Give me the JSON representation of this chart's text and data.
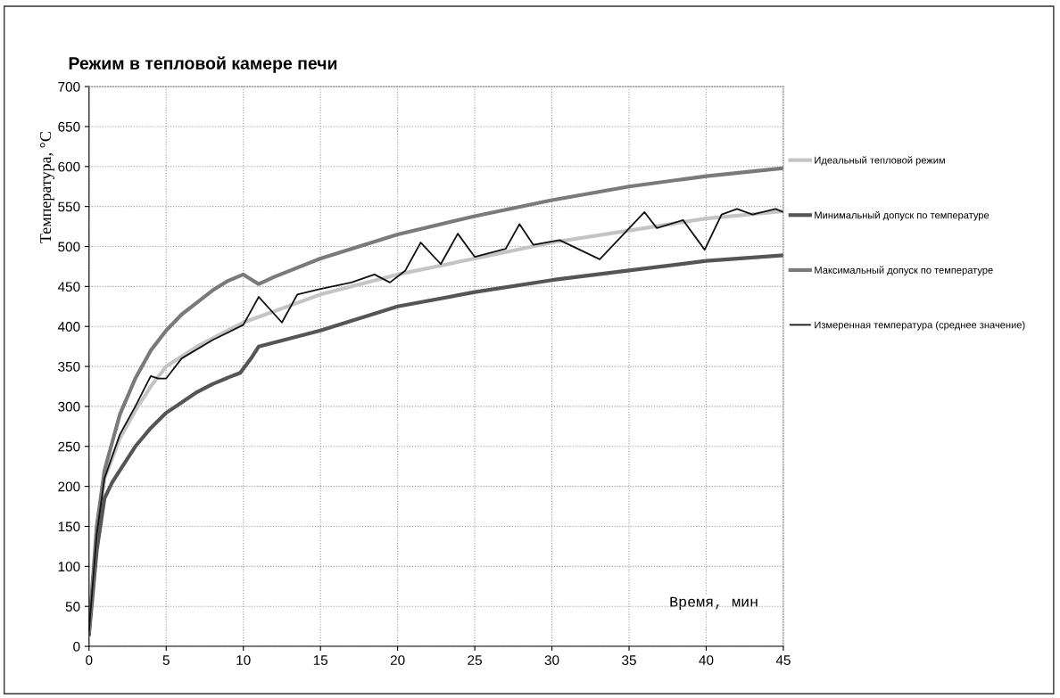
{
  "chart_data": {
    "type": "line",
    "title": "Режим в тепловой камере печи",
    "xlabel": "Время, мин",
    "ylabel": "Температура, °С",
    "xlim": [
      0,
      45
    ],
    "xticks": [
      0,
      5,
      10,
      15,
      20,
      25,
      30,
      35,
      40,
      45
    ],
    "ylim": [
      0,
      700
    ],
    "yticks": [
      0,
      50,
      100,
      150,
      200,
      250,
      300,
      350,
      400,
      450,
      500,
      550,
      600,
      650,
      700
    ],
    "grid": true,
    "legend": "right",
    "marker": "none",
    "line_style": "solid",
    "series": [
      {
        "name": "Идеальный тепловой режим",
        "color": "#c4c4c4",
        "x": [
          0,
          0.5,
          1,
          2,
          3,
          4,
          5,
          7,
          10,
          15,
          20,
          25,
          30,
          35,
          40,
          45
        ],
        "values": [
          18,
          140,
          210,
          260,
          295,
          325,
          350,
          375,
          405,
          440,
          465,
          485,
          505,
          520,
          535,
          544
        ]
      },
      {
        "name": "Минимальный допуск по температуре",
        "color": "#555555",
        "x": [
          0,
          0.5,
          1,
          1.5,
          2,
          3,
          4,
          5,
          6,
          7,
          8,
          9,
          9.8,
          10.5,
          11,
          12,
          13,
          15,
          20,
          25,
          30,
          35,
          40,
          45
        ],
        "values": [
          15,
          120,
          185,
          205,
          220,
          250,
          273,
          292,
          305,
          318,
          328,
          336,
          342,
          360,
          375,
          380,
          385,
          395,
          425,
          443,
          458,
          470,
          482,
          489
        ]
      },
      {
        "name": "Максимальный допуск по температуре",
        "color": "#7a7a7a",
        "x": [
          0,
          0.5,
          1,
          1.5,
          2,
          3,
          4,
          5,
          6,
          7,
          8,
          9,
          10,
          11,
          12,
          15,
          20,
          25,
          30,
          35,
          40,
          45
        ],
        "values": [
          20,
          150,
          220,
          255,
          290,
          335,
          370,
          395,
          415,
          430,
          445,
          457,
          465,
          453,
          462,
          485,
          515,
          538,
          558,
          575,
          588,
          598
        ]
      },
      {
        "name": "Измеренная температура (среднее значение)",
        "color": "#111111",
        "x": [
          0,
          0.5,
          1,
          2,
          3,
          4,
          4.5,
          5,
          6,
          8,
          10,
          11,
          12.5,
          13.5,
          15,
          17,
          18.5,
          19.5,
          20.5,
          21.5,
          22.8,
          23.9,
          25,
          27,
          27.9,
          28.8,
          30.5,
          33.1,
          36,
          36.8,
          38.5,
          39.9,
          41,
          42,
          43,
          44.5,
          45
        ],
        "values": [
          20,
          140,
          210,
          265,
          300,
          338,
          335,
          335,
          360,
          383,
          402,
          437,
          405,
          440,
          447,
          455,
          465,
          455,
          470,
          505,
          478,
          516,
          487,
          497,
          528,
          502,
          508,
          484,
          543,
          523,
          533,
          496,
          540,
          547,
          540,
          547,
          543
        ]
      }
    ]
  }
}
